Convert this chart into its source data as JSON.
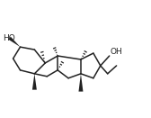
{
  "bg_color": "#ffffff",
  "line_color": "#222222",
  "figsize": [
    1.68,
    1.31
  ],
  "dpi": 100,
  "ho_text": "HO",
  "oh_text": "OH",
  "ho_fontsize": 6.5,
  "oh_fontsize": 6.5,
  "lw": 1.1
}
